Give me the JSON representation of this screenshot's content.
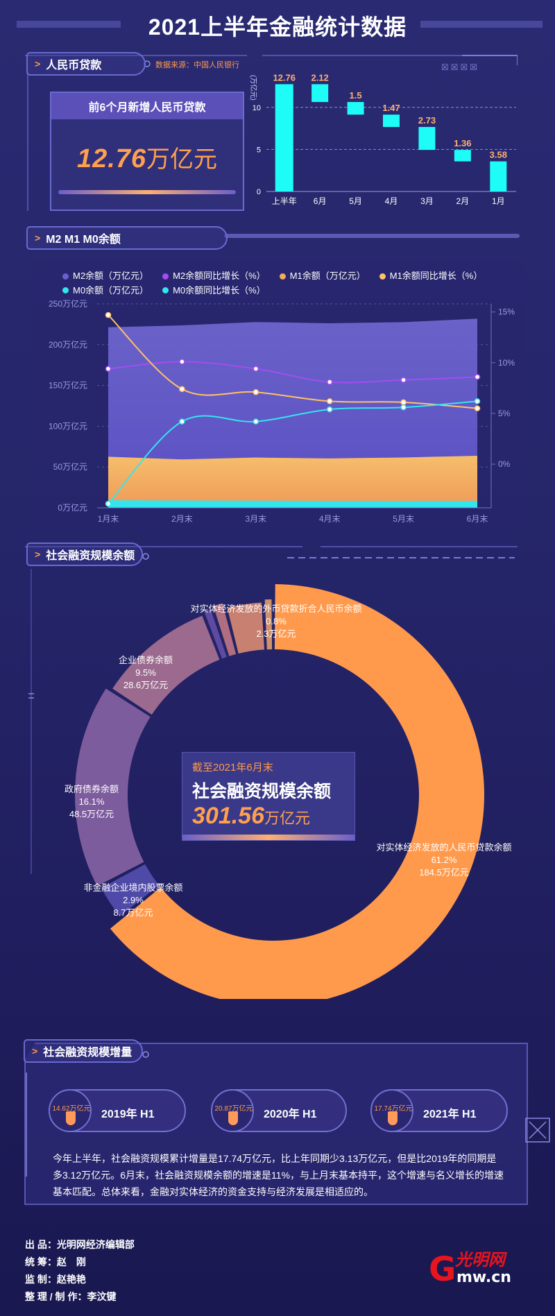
{
  "page": {
    "title": "2021上半年金融统计数据"
  },
  "loans": {
    "section_label": "人民币贷款",
    "source": "数据来源：中国人民银行",
    "card_title": "前6个月新增人民币贷款",
    "card_value": "12.76",
    "card_unit": "万亿元"
  },
  "m_section": {
    "section_label": "M2 M1 M0余额"
  },
  "tsf_stock_section": {
    "section_label": "社会融资规模余额"
  },
  "tsf_center": {
    "line1": "截至2021年6月末",
    "line2": "社会融资规模余额",
    "value": "301.56",
    "unit": "万亿元"
  },
  "tsf_increment": {
    "section_label": "社会融资规模增量",
    "items": [
      {
        "label": "2019年 H1",
        "value": "14.62万亿元"
      },
      {
        "label": "2020年 H1",
        "value": "20.87万亿元"
      },
      {
        "label": "2021年 H1",
        "value": "17.74万亿元"
      }
    ],
    "paragraph": "今年上半年，社会融资规模累计增量是17.74万亿元，比上年同期少3.13万亿元，但是比2019年的同期是多3.12万亿元。6月末，社会融资规模余额的增速是11%，与上月末基本持平，这个增速与名义增长的增速基本匹配。总体来看，金融对实体经济的资金支持与经济发展是相适应的。"
  },
  "credits": [
    {
      "k": "出 品：",
      "v": "光明网经济编辑部"
    },
    {
      "k": "统 筹：",
      "v": "赵　刚"
    },
    {
      "k": "监 制：",
      "v": "赵艳艳"
    },
    {
      "k": "整 理 / 制 作：",
      "v": "李汶键"
    }
  ],
  "logo": {
    "text": "光明网",
    "sub": "Gmw.cn"
  },
  "colors": {
    "accent": "#ff9a4a",
    "cyan": "#1efcf8",
    "m2": "#6b5fd0",
    "m2_line": "#a24ef0",
    "m1": "#f5a95a",
    "m1_line": "#ffc266",
    "m0": "#33e6ee"
  },
  "chart_data": [
    {
      "type": "bar",
      "subtype": "waterfall",
      "ylabel": "(万亿元)",
      "categories": [
        "上半年",
        "6月",
        "5月",
        "4月",
        "3月",
        "2月",
        "1月"
      ],
      "values": [
        12.76,
        2.12,
        1.5,
        1.47,
        2.73,
        1.36,
        3.58
      ],
      "data_labels": [
        "12.76",
        "2.12",
        "1.5",
        "1.47",
        "2.73",
        "1.36",
        "3.58"
      ],
      "ylim": [
        0,
        13.2
      ],
      "yticks": [
        0,
        5,
        10
      ],
      "grid": true
    },
    {
      "type": "area",
      "x": [
        "1月末",
        "2月末",
        "3月末",
        "4月末",
        "5月末",
        "6月末"
      ],
      "legend": [
        "M2余额（万亿元）",
        "M2余额同比增长（%）",
        "M1余额（万亿元）",
        "M1余额同比增长（%）",
        "M0余额（万亿元）",
        "M0余额同比增长（%）"
      ],
      "legend_position": "top",
      "y_left": {
        "ticks": [
          "0万亿元",
          "50万亿元",
          "100万亿元",
          "150万亿元",
          "200万亿元",
          "250万亿元"
        ],
        "lim": [
          0,
          250
        ]
      },
      "y_right": {
        "ticks": [
          "0%",
          "5%",
          "10%",
          "15%"
        ],
        "lim": [
          -4.3,
          15.8
        ]
      },
      "series": [
        {
          "name": "M2余额（万亿元）",
          "axis": "left",
          "kind": "area",
          "values": [
            221.3,
            223.6,
            227.7,
            226.2,
            227.6,
            231.8
          ]
        },
        {
          "name": "M1余额（万亿元）",
          "axis": "left",
          "kind": "area",
          "values": [
            62.6,
            59.3,
            61.6,
            60.5,
            61.7,
            63.8
          ]
        },
        {
          "name": "M0余额（万亿元）",
          "axis": "left",
          "kind": "area",
          "values": [
            9.3,
            8.9,
            8.7,
            8.5,
            8.4,
            8.5
          ]
        },
        {
          "name": "M2余额同比增长（%）",
          "axis": "right",
          "kind": "line",
          "values": [
            9.4,
            10.1,
            9.4,
            8.1,
            8.3,
            8.6
          ]
        },
        {
          "name": "M1余额同比增长（%）",
          "axis": "right",
          "kind": "line",
          "values": [
            14.7,
            7.4,
            7.1,
            6.2,
            6.1,
            5.5
          ]
        },
        {
          "name": "M0余额同比增长（%）",
          "axis": "right",
          "kind": "line",
          "values": [
            -3.9,
            4.2,
            4.2,
            5.4,
            5.6,
            6.2
          ]
        }
      ]
    },
    {
      "type": "pie",
      "subtype": "donut",
      "slices": [
        {
          "name": "对实体经济发放的人民币贷款余额",
          "percent": "61.2%",
          "value": "184.5万亿元",
          "pct": 61.2
        },
        {
          "name": "非金融企业境内股票余额",
          "percent": "2.9%",
          "value": "8.7万亿元",
          "pct": 2.9
        },
        {
          "name": "政府债券余额",
          "percent": "16.1%",
          "value": "48.5万亿元",
          "pct": 16.1
        },
        {
          "name": "企业债券余额",
          "percent": "9.5%",
          "value": "28.6万亿元",
          "pct": 9.5
        },
        {
          "name": "",
          "percent": "",
          "value": "",
          "pct": 0.8
        },
        {
          "name": "",
          "percent": "",
          "value": "",
          "pct": 1.0
        },
        {
          "name": "",
          "percent": "",
          "value": "",
          "pct": 3.0
        },
        {
          "name": "对实体经济发放的外币贷款折合人民币余额",
          "percent": "0.8%",
          "value": "2.3万亿元",
          "pct": 0.8
        }
      ]
    }
  ]
}
